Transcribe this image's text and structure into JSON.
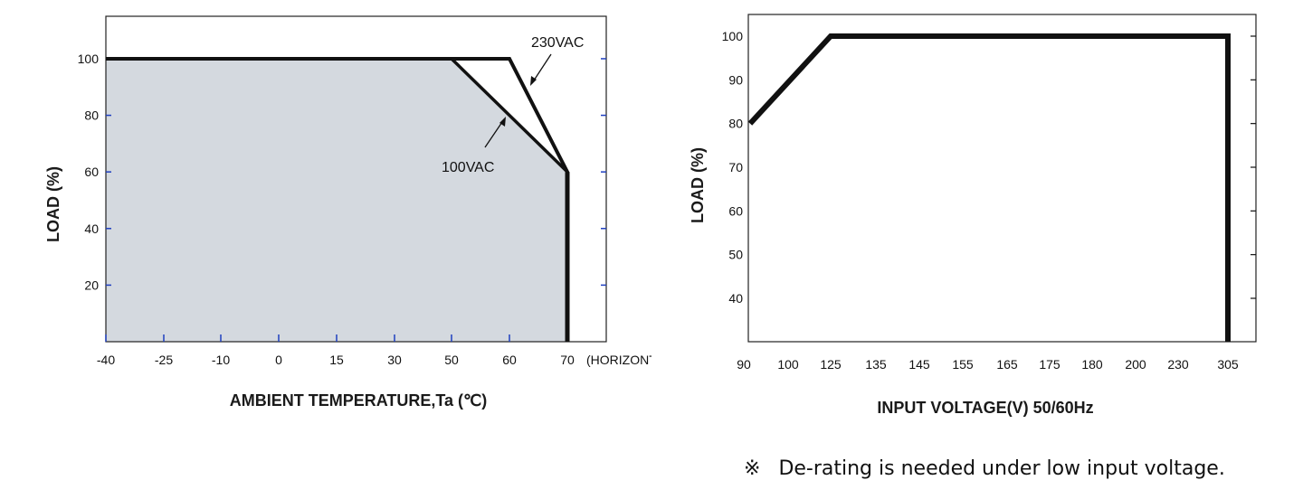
{
  "chart_data": [
    {
      "type": "line",
      "xlabel": "AMBIENT TEMPERATURE,Ta (℃)",
      "ylabel": "LOAD (%)",
      "x_ticks": [
        "-40",
        "-25",
        "-10",
        "0",
        "15",
        "30",
        "50",
        "60",
        "70"
      ],
      "x_tick_suffix": "(HORIZONTAL)",
      "y_ticks": [
        20,
        40,
        60,
        80,
        100
      ],
      "ylim": [
        0,
        115
      ],
      "grid": false,
      "shaded_area": {
        "color": "#d4d9df",
        "points": [
          [
            "-40",
            100
          ],
          [
            "50",
            100
          ],
          [
            "70",
            60
          ],
          [
            "70",
            0
          ],
          [
            "-40",
            0
          ]
        ]
      },
      "series": [
        {
          "name": "230VAC",
          "x": [
            "-40",
            "60",
            "70",
            "70"
          ],
          "y": [
            100,
            100,
            60,
            0
          ]
        },
        {
          "name": "100VAC",
          "x": [
            "50",
            "70"
          ],
          "y": [
            100,
            60
          ]
        }
      ],
      "annotations": [
        "230VAC",
        "100VAC"
      ]
    },
    {
      "type": "line",
      "xlabel": "INPUT VOLTAGE(V) 50/60Hz",
      "ylabel": "LOAD (%)",
      "x_ticks": [
        "90",
        "100",
        "125",
        "135",
        "145",
        "155",
        "165",
        "175",
        "180",
        "200",
        "230",
        "305"
      ],
      "y_ticks": [
        40,
        50,
        60,
        70,
        80,
        90,
        100
      ],
      "ylim": [
        30,
        105
      ],
      "grid": false,
      "series": [
        {
          "x": [
            "90",
            "125",
            "305",
            "305"
          ],
          "y": [
            80,
            100,
            100,
            30
          ]
        }
      ]
    }
  ],
  "note": {
    "mark": "※",
    "text": "De-rating is needed under low input voltage."
  }
}
